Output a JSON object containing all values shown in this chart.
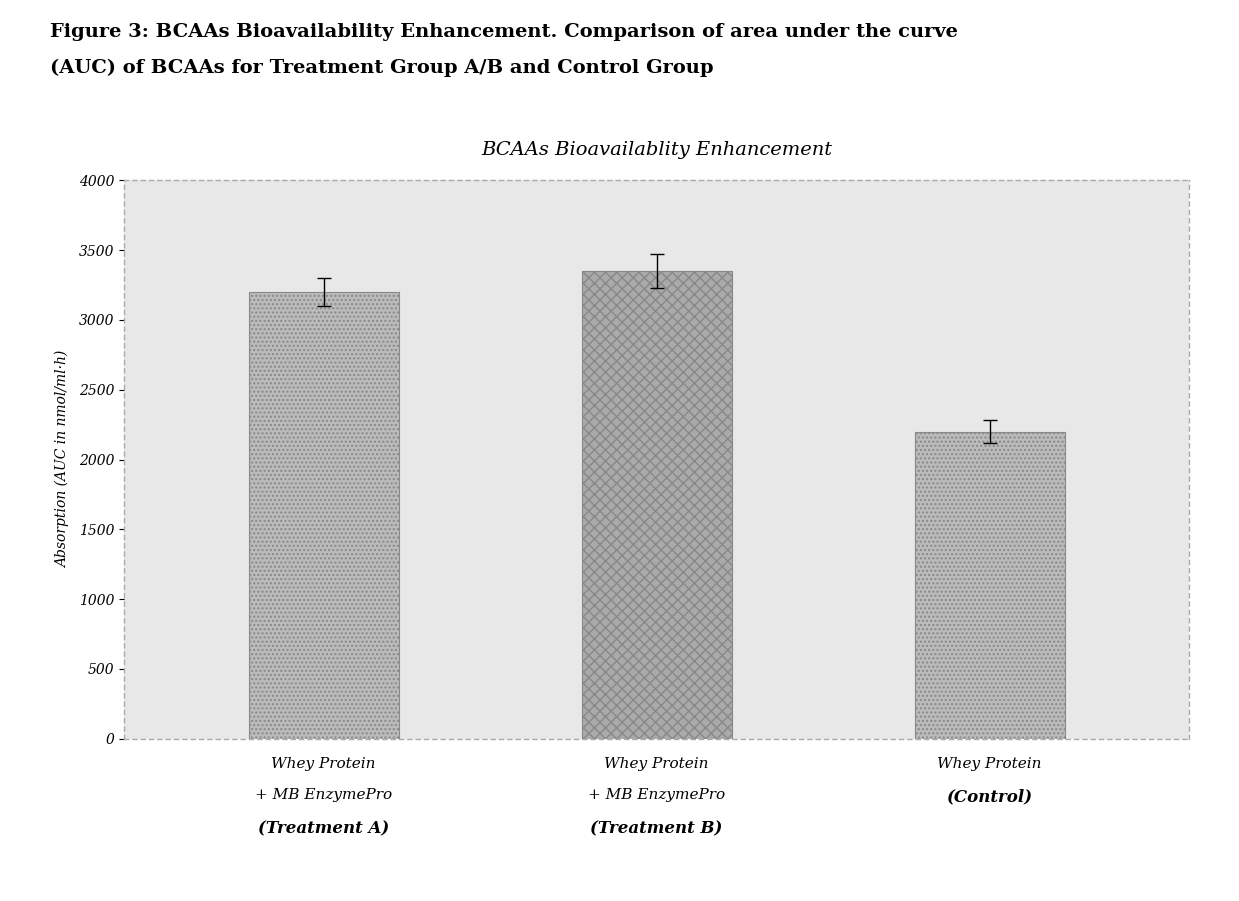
{
  "title": "BCAAs Bioavailablity Enhancement",
  "figure_title_line1": "Figure 3: BCAAs Bioavailability Enhancement. Comparison of area under the curve",
  "figure_title_line2": "(AUC) of BCAAs for Treatment Group A/B and Control Group",
  "categories_line1": [
    "Whey Protein",
    "Whey Protein",
    "Whey Protein"
  ],
  "categories_line2": [
    "+ MB EnzymePro",
    "+ MB EnzymePro",
    ""
  ],
  "categories_line3": [
    "(Treatment A)",
    "(Treatment B)",
    "(Control)"
  ],
  "values": [
    3200,
    3350,
    2200
  ],
  "errors": [
    100,
    120,
    80
  ],
  "ylabel": "Absorption (AUC in nmol/ml·h)",
  "ylim": [
    0,
    4000
  ],
  "yticks": [
    0,
    500,
    1000,
    1500,
    2000,
    2500,
    3000,
    3500,
    4000
  ],
  "bar_color": "#bbbbbb",
  "bar_hatch": "....",
  "background_color": "#e8e8e8",
  "border_color": "#aaaaaa",
  "title_fontsize": 14,
  "tick_fontsize": 10,
  "ylabel_fontsize": 10
}
